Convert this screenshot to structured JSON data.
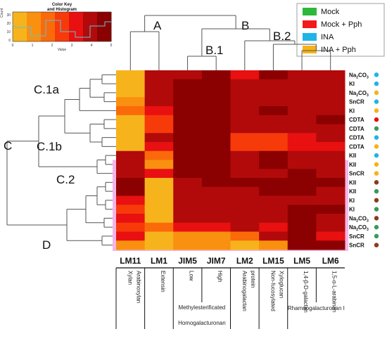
{
  "chart_data": {
    "type": "heatmap",
    "color_key": {
      "title_line1": "Color Key",
      "title_line2": "and Histogram",
      "xlabel": "Value",
      "ylabel": "Count",
      "x_ticks": [
        "0",
        "1",
        "2",
        "3",
        "4",
        "5"
      ],
      "y_ticks": [
        "0",
        "10",
        "20",
        "30"
      ],
      "range": [
        0,
        5
      ],
      "colors": [
        "#F7B31C",
        "#F99010",
        "#FA6A0A",
        "#F73A0A",
        "#E81010",
        "#B20A0A",
        "#8B0000"
      ]
    },
    "legend": [
      {
        "label": "Mock",
        "color": "#2DB83A"
      },
      {
        "label": "Mock + Pph",
        "color": "#F21A1A"
      },
      {
        "label": "INA",
        "color": "#1EB4E8"
      },
      {
        "label": "INA + Pph",
        "color": "#F7B218"
      }
    ],
    "branch_labels": {
      "A": "A",
      "B": "B",
      "B1": "B.1",
      "B2": "B.2",
      "C": "C",
      "C1a": "C.1a",
      "C1b": "C.1b",
      "C2": "C.2",
      "D": "D"
    },
    "columns": [
      "LM11",
      "LM1",
      "JIM5",
      "JIM7",
      "LM2",
      "LM15",
      "LM5",
      "LM6"
    ],
    "column_descriptions": {
      "LM11": [
        "Xylan",
        "Arabinoxylan"
      ],
      "LM1": [
        "Extensin"
      ],
      "JIM5": [
        "Low"
      ],
      "JIM7": [
        "High"
      ],
      "JIM_group": "Methylesterificated",
      "JIM_group2": "Homogalacturonan",
      "LM2": [
        "Arabinogalactan",
        "protein"
      ],
      "LM15": [
        "Non-fucosylated",
        "Xyloglucan"
      ],
      "LM5": [
        "1,4-β-D-galactan"
      ],
      "LM6": [
        "1,5-α-L-arabinan"
      ],
      "LM56_group": "Rhamnogalacturonan I"
    },
    "rows": [
      {
        "label": "Na2CO3",
        "treatment": "INA",
        "values": [
          0.5,
          4.0,
          4.0,
          4.3,
          3.5,
          4.5,
          4.0,
          4.0
        ]
      },
      {
        "label": "KI",
        "treatment": "INA",
        "values": [
          0.5,
          4.0,
          4.3,
          4.5,
          4.0,
          4.1,
          4.0,
          4.0
        ]
      },
      {
        "label": "Na2CO3",
        "treatment": "INA + Pph",
        "values": [
          0.5,
          4.0,
          4.6,
          4.6,
          4.0,
          4.1,
          4.0,
          4.0
        ]
      },
      {
        "label": "SnCR",
        "treatment": "INA",
        "values": [
          1.0,
          4.0,
          4.3,
          4.6,
          4.0,
          4.2,
          4.0,
          4.1
        ]
      },
      {
        "label": "KI",
        "treatment": "INA + Pph",
        "values": [
          1.5,
          3.2,
          4.6,
          4.6,
          4.0,
          4.3,
          4.0,
          4.0
        ]
      },
      {
        "label": "CDTA",
        "treatment": "Mock + Pph",
        "values": [
          0.5,
          2.8,
          4.6,
          4.6,
          4.0,
          4.0,
          4.0,
          4.4
        ]
      },
      {
        "label": "CDTA",
        "treatment": "Mock",
        "values": [
          0.5,
          2.8,
          4.6,
          4.3,
          4.0,
          4.0,
          4.0,
          4.0
        ]
      },
      {
        "label": "CDTA",
        "treatment": "INA",
        "values": [
          0.5,
          4.0,
          4.6,
          4.6,
          2.5,
          2.5,
          3.5,
          4.0
        ]
      },
      {
        "label": "CDTA",
        "treatment": "INA + Pph",
        "values": [
          0.5,
          3.2,
          4.6,
          4.6,
          2.5,
          2.5,
          3.5,
          3.2
        ]
      },
      {
        "label": "KII",
        "treatment": "INA",
        "values": [
          4.0,
          2.0,
          4.3,
          4.6,
          4.0,
          4.6,
          4.0,
          4.0
        ]
      },
      {
        "label": "KII",
        "treatment": "INA + Pph",
        "values": [
          4.0,
          1.0,
          4.3,
          4.6,
          4.0,
          4.6,
          4.0,
          4.0
        ]
      },
      {
        "label": "SnCR",
        "treatment": "INA + Pph",
        "values": [
          4.0,
          3.0,
          4.6,
          4.6,
          4.0,
          4.0,
          4.3,
          4.0
        ]
      },
      {
        "label": "KII",
        "treatment": "Pph",
        "values": [
          4.3,
          0.5,
          4.0,
          4.3,
          4.3,
          4.6,
          4.3,
          4.3
        ]
      },
      {
        "label": "KII",
        "treatment": "Mock",
        "values": [
          4.3,
          0.5,
          4.0,
          4.0,
          4.0,
          4.6,
          4.3,
          4.0
        ]
      },
      {
        "label": "KI",
        "treatment": "Pph",
        "values": [
          3.5,
          0.5,
          4.0,
          4.0,
          4.0,
          4.0,
          4.0,
          4.0
        ]
      },
      {
        "label": "KI",
        "treatment": "Mock",
        "values": [
          2.5,
          0.5,
          4.0,
          4.0,
          4.0,
          4.0,
          4.3,
          4.3
        ]
      },
      {
        "label": "Na2CO3",
        "treatment": "Pph",
        "values": [
          3.0,
          0.5,
          4.0,
          4.0,
          4.0,
          4.0,
          4.3,
          4.0
        ]
      },
      {
        "label": "Na2CO3",
        "treatment": "Mock",
        "values": [
          2.5,
          2.0,
          3.5,
          3.5,
          4.0,
          3.5,
          4.3,
          4.0
        ]
      },
      {
        "label": "SnCR",
        "treatment": "Mock",
        "values": [
          3.2,
          0.5,
          1.0,
          1.0,
          2.0,
          4.0,
          4.3,
          3.5
        ]
      },
      {
        "label": "SnCR",
        "treatment": "Pph",
        "values": [
          1.0,
          0.5,
          1.0,
          1.0,
          0.5,
          1.0,
          4.3,
          4.3
        ]
      }
    ],
    "row_dot_colors": {
      "Mock": "#3A9A5B",
      "Pph": "#8B3A1E",
      "INA": "#1EB4E8",
      "INA + Pph": "#F7B218",
      "Mock + Pph": "#E81010"
    }
  }
}
